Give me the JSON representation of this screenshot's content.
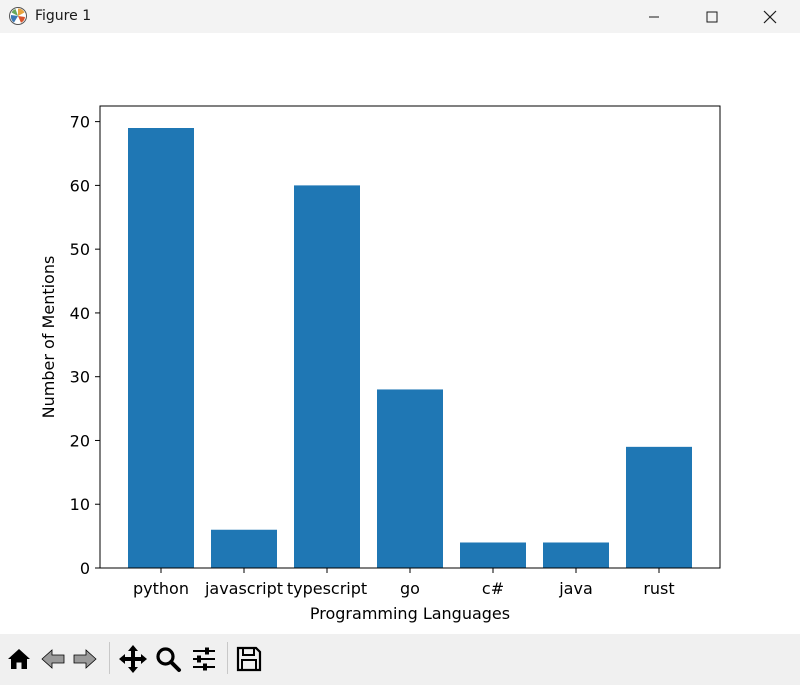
{
  "window": {
    "title": "Figure 1",
    "app_icon": "matplotlib-icon",
    "controls": [
      "minimize-icon",
      "maximize-icon",
      "close-icon"
    ]
  },
  "toolbar": {
    "buttons": [
      "home-icon",
      "back-arrow-icon",
      "forward-arrow-icon",
      "pan-move-icon",
      "zoom-magnifier-icon",
      "configure-subplots-icon",
      "save-floppy-icon"
    ]
  },
  "colors": {
    "bar": "#1f77b4",
    "titlebar": "#f3f3f3",
    "toolbar": "#f0f0f0"
  },
  "chart_data": {
    "type": "bar",
    "categories": [
      "python",
      "javascript",
      "typescript",
      "go",
      "c#",
      "java",
      "rust"
    ],
    "values": [
      69,
      6,
      60,
      28,
      4,
      4,
      19
    ],
    "title": "",
    "xlabel": "Programming Languages",
    "ylabel": "Number of Mentions",
    "ylim": [
      0,
      72.45
    ],
    "yticks": [
      0,
      10,
      20,
      30,
      40,
      50,
      60,
      70
    ],
    "grid": false,
    "legend": "none"
  }
}
